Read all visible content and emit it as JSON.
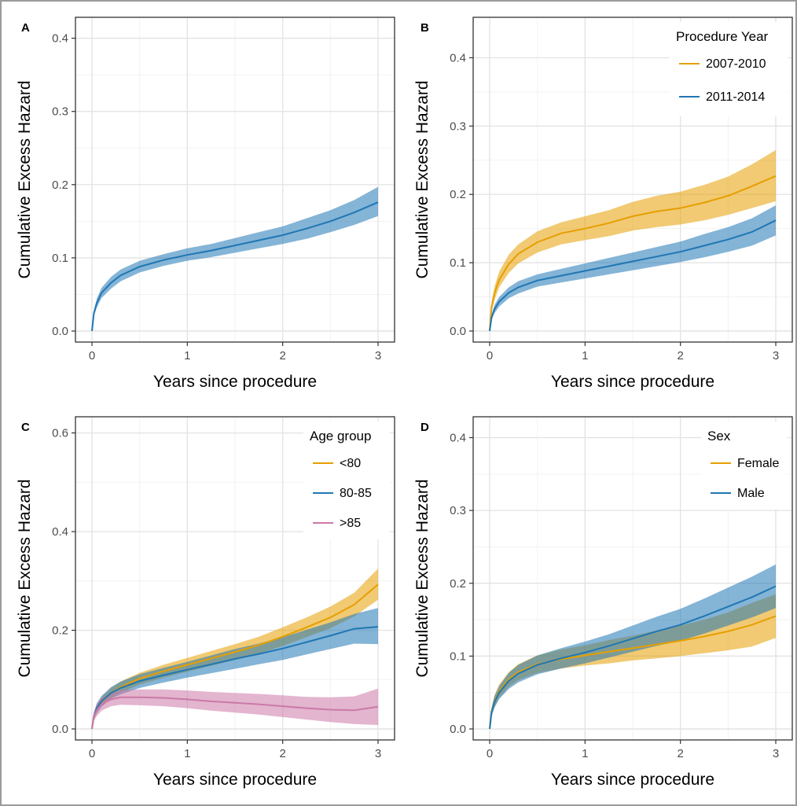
{
  "chart_data": [
    {
      "panel": "A",
      "type": "line",
      "xlabel": "Years since procedure",
      "ylabel": "Cumulative Excess Hazard",
      "xlim": [
        0,
        3
      ],
      "ylim": [
        0,
        0.42
      ],
      "xticks": [
        0,
        1,
        2,
        3
      ],
      "yticks": [
        0.0,
        0.1,
        0.2,
        0.3,
        0.4
      ],
      "ytick_labels": [
        "0.0",
        "0.1",
        "0.2",
        "0.3",
        "0.4"
      ],
      "legend": null,
      "series": [
        {
          "color": "#1f77b4",
          "x": [
            0,
            0.02,
            0.05,
            0.1,
            0.2,
            0.3,
            0.5,
            0.75,
            1.0,
            1.25,
            1.5,
            1.75,
            2.0,
            2.25,
            2.5,
            2.75,
            3.0
          ],
          "y": [
            0,
            0.024,
            0.038,
            0.052,
            0.066,
            0.076,
            0.088,
            0.097,
            0.104,
            0.11,
            0.117,
            0.124,
            0.131,
            0.14,
            0.15,
            0.162,
            0.176
          ],
          "lower": [
            0,
            0.02,
            0.032,
            0.045,
            0.058,
            0.068,
            0.08,
            0.089,
            0.096,
            0.101,
            0.107,
            0.113,
            0.119,
            0.126,
            0.135,
            0.145,
            0.157
          ],
          "upper": [
            0,
            0.028,
            0.044,
            0.059,
            0.074,
            0.084,
            0.096,
            0.105,
            0.113,
            0.119,
            0.127,
            0.135,
            0.143,
            0.154,
            0.165,
            0.179,
            0.197
          ]
        }
      ]
    },
    {
      "panel": "B",
      "type": "line",
      "xlabel": "Years since procedure",
      "ylabel": "Cumulative Excess Hazard",
      "xlim": [
        0,
        3
      ],
      "ylim": [
        0,
        0.45
      ],
      "xticks": [
        0,
        1,
        2,
        3
      ],
      "yticks": [
        0.0,
        0.1,
        0.2,
        0.3,
        0.4
      ],
      "ytick_labels": [
        "0.0",
        "0.1",
        "0.2",
        "0.3",
        "0.4"
      ],
      "legend": {
        "title": "Procedure Year",
        "position": "top-right"
      },
      "series": [
        {
          "name": "2007-2010",
          "color": "#e69f00",
          "x": [
            0,
            0.02,
            0.05,
            0.1,
            0.2,
            0.3,
            0.5,
            0.75,
            1.0,
            1.25,
            1.5,
            1.75,
            2.0,
            2.25,
            2.5,
            2.75,
            3.0
          ],
          "y": [
            0,
            0.035,
            0.055,
            0.075,
            0.098,
            0.113,
            0.13,
            0.143,
            0.15,
            0.158,
            0.168,
            0.175,
            0.18,
            0.188,
            0.198,
            0.212,
            0.227
          ],
          "lower": [
            0,
            0.028,
            0.045,
            0.064,
            0.085,
            0.099,
            0.115,
            0.127,
            0.133,
            0.139,
            0.147,
            0.152,
            0.156,
            0.162,
            0.17,
            0.18,
            0.19
          ],
          "upper": [
            0,
            0.042,
            0.065,
            0.087,
            0.112,
            0.127,
            0.146,
            0.159,
            0.168,
            0.177,
            0.189,
            0.198,
            0.204,
            0.214,
            0.226,
            0.244,
            0.265
          ]
        },
        {
          "name": "2011-2014",
          "color": "#1f77b4",
          "x": [
            0,
            0.02,
            0.05,
            0.1,
            0.2,
            0.3,
            0.5,
            0.75,
            1.0,
            1.25,
            1.5,
            1.75,
            2.0,
            2.25,
            2.5,
            2.75,
            3.0
          ],
          "y": [
            0,
            0.02,
            0.032,
            0.043,
            0.056,
            0.064,
            0.074,
            0.081,
            0.088,
            0.095,
            0.102,
            0.109,
            0.116,
            0.125,
            0.134,
            0.145,
            0.162
          ],
          "lower": [
            0,
            0.016,
            0.026,
            0.036,
            0.048,
            0.055,
            0.065,
            0.071,
            0.077,
            0.083,
            0.089,
            0.095,
            0.101,
            0.108,
            0.116,
            0.125,
            0.14
          ],
          "upper": [
            0,
            0.024,
            0.038,
            0.05,
            0.064,
            0.073,
            0.083,
            0.091,
            0.099,
            0.107,
            0.115,
            0.123,
            0.131,
            0.142,
            0.152,
            0.165,
            0.184
          ]
        }
      ]
    },
    {
      "panel": "C",
      "type": "line",
      "xlabel": "Years since procedure",
      "ylabel": "Cumulative Excess Hazard",
      "xlim": [
        0,
        3
      ],
      "ylim": [
        0,
        0.62
      ],
      "xticks": [
        0,
        1,
        2,
        3
      ],
      "yticks": [
        0.0,
        0.2,
        0.4,
        0.6
      ],
      "ytick_labels": [
        "0.0",
        "0.2",
        "0.4",
        "0.6"
      ],
      "legend": {
        "title": "Age group",
        "position": "top-right"
      },
      "series": [
        {
          "name": "<80",
          "color": "#e69f00",
          "x": [
            0,
            0.02,
            0.05,
            0.1,
            0.2,
            0.3,
            0.5,
            0.75,
            1.0,
            1.25,
            1.5,
            1.75,
            2.0,
            2.25,
            2.5,
            2.75,
            3.0
          ],
          "y": [
            0,
            0.025,
            0.04,
            0.055,
            0.073,
            0.085,
            0.102,
            0.117,
            0.13,
            0.143,
            0.156,
            0.17,
            0.187,
            0.206,
            0.226,
            0.252,
            0.293
          ],
          "lower": [
            0,
            0.019,
            0.032,
            0.046,
            0.063,
            0.074,
            0.09,
            0.104,
            0.116,
            0.128,
            0.14,
            0.153,
            0.168,
            0.186,
            0.204,
            0.228,
            0.262
          ],
          "upper": [
            0,
            0.031,
            0.048,
            0.064,
            0.083,
            0.096,
            0.114,
            0.13,
            0.144,
            0.158,
            0.172,
            0.187,
            0.206,
            0.226,
            0.248,
            0.276,
            0.325
          ]
        },
        {
          "name": "80-85",
          "color": "#1f77b4",
          "x": [
            0,
            0.02,
            0.05,
            0.1,
            0.2,
            0.3,
            0.5,
            0.75,
            1.0,
            1.25,
            1.5,
            1.75,
            2.0,
            2.25,
            2.5,
            2.75,
            3.0
          ],
          "y": [
            0,
            0.026,
            0.042,
            0.056,
            0.073,
            0.083,
            0.097,
            0.109,
            0.12,
            0.131,
            0.142,
            0.152,
            0.163,
            0.176,
            0.189,
            0.203,
            0.207
          ],
          "lower": [
            0,
            0.019,
            0.032,
            0.045,
            0.061,
            0.07,
            0.083,
            0.094,
            0.104,
            0.113,
            0.122,
            0.131,
            0.14,
            0.151,
            0.162,
            0.173,
            0.172
          ],
          "upper": [
            0,
            0.033,
            0.052,
            0.067,
            0.085,
            0.096,
            0.111,
            0.124,
            0.136,
            0.149,
            0.162,
            0.173,
            0.186,
            0.201,
            0.216,
            0.233,
            0.245
          ]
        },
        {
          "name": ">85",
          "color": "#cc79a7",
          "x": [
            0,
            0.02,
            0.05,
            0.1,
            0.2,
            0.3,
            0.5,
            0.75,
            1.0,
            1.25,
            1.5,
            1.75,
            2.0,
            2.25,
            2.5,
            2.75,
            3.0
          ],
          "y": [
            0,
            0.025,
            0.038,
            0.05,
            0.06,
            0.064,
            0.064,
            0.063,
            0.06,
            0.056,
            0.053,
            0.05,
            0.046,
            0.042,
            0.039,
            0.038,
            0.045
          ],
          "lower": [
            0,
            0.016,
            0.026,
            0.037,
            0.046,
            0.049,
            0.048,
            0.046,
            0.042,
            0.037,
            0.033,
            0.029,
            0.024,
            0.019,
            0.014,
            0.01,
            0.008
          ],
          "upper": [
            0,
            0.034,
            0.05,
            0.063,
            0.074,
            0.079,
            0.08,
            0.08,
            0.078,
            0.075,
            0.073,
            0.071,
            0.068,
            0.065,
            0.064,
            0.066,
            0.082
          ]
        }
      ]
    },
    {
      "panel": "D",
      "type": "line",
      "xlabel": "Years since procedure",
      "ylabel": "Cumulative Excess Hazard",
      "xlim": [
        0,
        3
      ],
      "ylim": [
        0,
        0.42
      ],
      "xticks": [
        0,
        1,
        2,
        3
      ],
      "yticks": [
        0.0,
        0.1,
        0.2,
        0.3,
        0.4
      ],
      "ytick_labels": [
        "0.0",
        "0.1",
        "0.2",
        "0.3",
        "0.4"
      ],
      "legend": {
        "title": "Sex",
        "position": "top-right"
      },
      "series": [
        {
          "name": "Female",
          "color": "#e69f00",
          "x": [
            0,
            0.02,
            0.05,
            0.1,
            0.2,
            0.3,
            0.5,
            0.75,
            1.0,
            1.25,
            1.5,
            1.75,
            2.0,
            2.25,
            2.5,
            2.75,
            3.0
          ],
          "y": [
            0,
            0.024,
            0.038,
            0.052,
            0.068,
            0.078,
            0.089,
            0.096,
            0.101,
            0.106,
            0.111,
            0.116,
            0.121,
            0.127,
            0.134,
            0.143,
            0.155
          ],
          "lower": [
            0,
            0.019,
            0.03,
            0.043,
            0.058,
            0.067,
            0.077,
            0.083,
            0.087,
            0.09,
            0.094,
            0.097,
            0.1,
            0.104,
            0.108,
            0.113,
            0.125
          ],
          "upper": [
            0,
            0.029,
            0.046,
            0.061,
            0.078,
            0.089,
            0.101,
            0.109,
            0.115,
            0.122,
            0.128,
            0.135,
            0.142,
            0.15,
            0.16,
            0.173,
            0.185
          ]
        },
        {
          "name": "Male",
          "color": "#1f77b4",
          "x": [
            0,
            0.02,
            0.05,
            0.1,
            0.2,
            0.3,
            0.5,
            0.75,
            1.0,
            1.25,
            1.5,
            1.75,
            2.0,
            2.25,
            2.5,
            2.75,
            3.0
          ],
          "y": [
            0,
            0.023,
            0.037,
            0.05,
            0.066,
            0.076,
            0.088,
            0.097,
            0.105,
            0.114,
            0.124,
            0.134,
            0.143,
            0.155,
            0.168,
            0.181,
            0.196
          ],
          "lower": [
            0,
            0.017,
            0.029,
            0.041,
            0.055,
            0.064,
            0.075,
            0.083,
            0.09,
            0.098,
            0.106,
            0.114,
            0.121,
            0.131,
            0.142,
            0.153,
            0.166
          ],
          "upper": [
            0,
            0.029,
            0.045,
            0.059,
            0.077,
            0.088,
            0.101,
            0.111,
            0.12,
            0.13,
            0.142,
            0.154,
            0.165,
            0.179,
            0.194,
            0.209,
            0.226
          ]
        }
      ]
    }
  ]
}
